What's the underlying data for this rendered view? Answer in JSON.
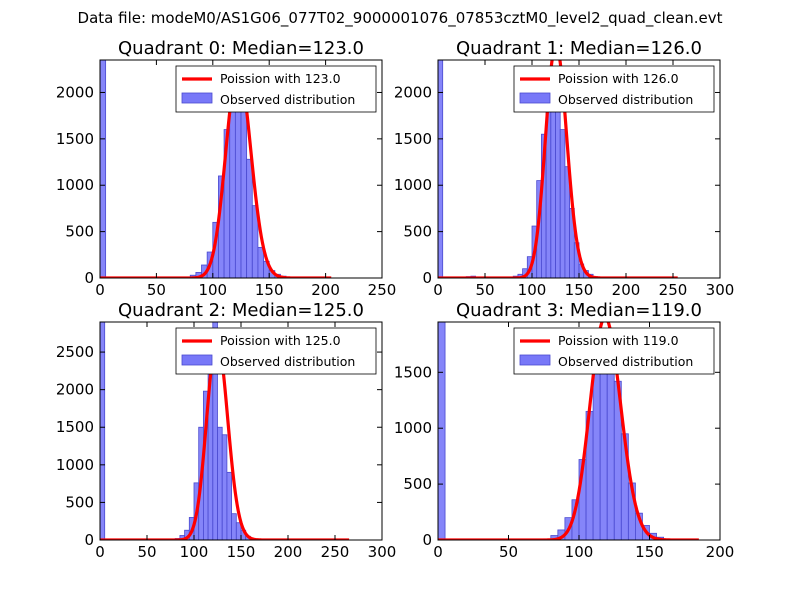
{
  "figure": {
    "suptitle": "Data file: modeM0/AS1G06_077T02_9000001076_07853cztM0_level2_quad_clean.evt"
  },
  "chart_data": [
    {
      "type": "bar",
      "title": "Quadrant 0: Median=123.0",
      "median": 123.0,
      "xlim": [
        0,
        250
      ],
      "ylim": [
        0,
        2350
      ],
      "xticks": [
        0,
        50,
        100,
        150,
        200,
        250
      ],
      "yticks": [
        0,
        500,
        1000,
        1500,
        2000
      ],
      "bin_width": 5,
      "histogram": {
        "bin_starts": [
          0,
          70,
          75,
          80,
          85,
          90,
          95,
          100,
          105,
          110,
          115,
          120,
          125,
          130,
          135,
          140,
          145,
          150,
          155,
          160,
          165,
          170
        ],
        "counts": [
          2350,
          5,
          10,
          30,
          60,
          140,
          280,
          600,
          1100,
          1600,
          1950,
          2250,
          1800,
          1280,
          780,
          330,
          180,
          80,
          40,
          20,
          10,
          5
        ]
      },
      "fit_curve": {
        "label_value": 123.0,
        "x_max": 205
      },
      "legend": {
        "fit": "Poission with 123.0",
        "observed": "Observed distribution",
        "placement": "top-right"
      },
      "colors": {
        "bars": "#7878f8",
        "bar_edge": "#4a4ad0",
        "fit": "#ff0000"
      }
    },
    {
      "type": "bar",
      "title": "Quadrant 1: Median=126.0",
      "median": 126.0,
      "xlim": [
        0,
        300
      ],
      "ylim": [
        0,
        2350
      ],
      "xticks": [
        0,
        50,
        100,
        150,
        200,
        250,
        300
      ],
      "yticks": [
        0,
        500,
        1000,
        1500,
        2000
      ],
      "bin_width": 5,
      "histogram": {
        "bin_starts": [
          0,
          30,
          35,
          40,
          80,
          85,
          90,
          95,
          100,
          105,
          110,
          115,
          120,
          125,
          130,
          135,
          140,
          145,
          150,
          155,
          160,
          165,
          170
        ],
        "counts": [
          2350,
          15,
          20,
          10,
          20,
          40,
          100,
          230,
          560,
          1050,
          1550,
          2000,
          2150,
          2200,
          1600,
          1200,
          750,
          380,
          150,
          80,
          40,
          15,
          5
        ]
      },
      "fit_curve": {
        "label_value": 126.0,
        "x_max": 255
      },
      "legend": {
        "fit": "Poission with 126.0",
        "observed": "Observed distribution",
        "placement": "top-right"
      },
      "colors": {
        "bars": "#7878f8",
        "bar_edge": "#4a4ad0",
        "fit": "#ff0000"
      }
    },
    {
      "type": "bar",
      "title": "Quadrant 2: Median=125.0",
      "median": 125.0,
      "xlim": [
        0,
        300
      ],
      "ylim": [
        0,
        2900
      ],
      "xticks": [
        0,
        50,
        100,
        150,
        200,
        250,
        300
      ],
      "yticks": [
        0,
        500,
        1000,
        1500,
        2000,
        2500
      ],
      "bin_width": 5,
      "histogram": {
        "bin_starts": [
          0,
          80,
          85,
          90,
          95,
          100,
          105,
          110,
          115,
          120,
          125,
          130,
          135,
          140,
          145,
          150,
          155,
          160
        ],
        "counts": [
          2900,
          20,
          60,
          130,
          300,
          760,
          1500,
          1980,
          2700,
          2900,
          1500,
          1400,
          900,
          350,
          230,
          130,
          50,
          15
        ]
      },
      "fit_curve": {
        "label_value": 125.0,
        "x_max": 265
      },
      "legend": {
        "fit": "Poission with 125.0",
        "observed": "Observed distribution",
        "placement": "top-right"
      },
      "colors": {
        "bars": "#7878f8",
        "bar_edge": "#4a4ad0",
        "fit": "#ff0000"
      }
    },
    {
      "type": "bar",
      "title": "Quadrant 3: Median=119.0",
      "median": 119.0,
      "xlim": [
        0,
        200
      ],
      "ylim": [
        0,
        1950
      ],
      "xticks": [
        0,
        50,
        100,
        150,
        200
      ],
      "yticks": [
        0,
        500,
        1000,
        1500
      ],
      "bin_width": 5,
      "histogram": {
        "bin_starts": [
          0,
          75,
          80,
          85,
          90,
          95,
          100,
          105,
          110,
          115,
          120,
          125,
          130,
          135,
          140,
          145,
          150,
          155,
          160
        ],
        "counts": [
          1950,
          10,
          40,
          90,
          200,
          360,
          720,
          1150,
          1500,
          1590,
          1880,
          1420,
          950,
          510,
          240,
          130,
          60,
          25,
          10
        ]
      },
      "fit_curve": {
        "label_value": 119.0,
        "x_max": 185
      },
      "legend": {
        "fit": "Poission with 119.0",
        "observed": "Observed distribution",
        "placement": "top-right"
      },
      "colors": {
        "bars": "#7878f8",
        "bar_edge": "#4a4ad0",
        "fit": "#ff0000"
      }
    }
  ]
}
